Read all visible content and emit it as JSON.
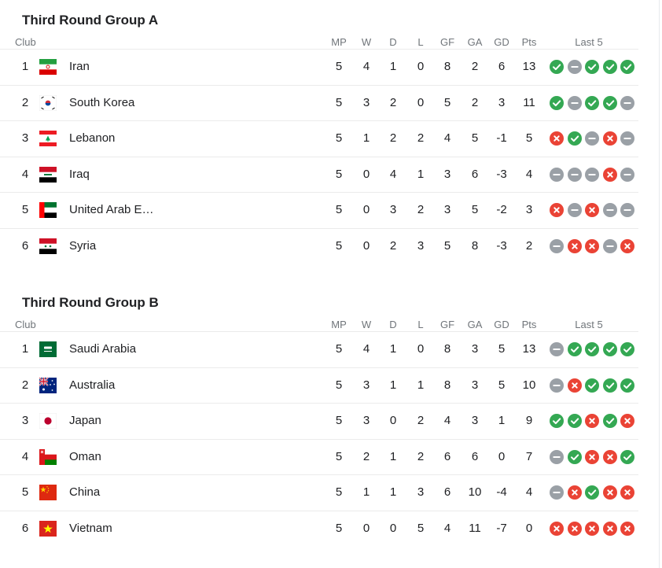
{
  "columns": {
    "club": "Club",
    "mp": "MP",
    "w": "W",
    "d": "D",
    "l": "L",
    "gf": "GF",
    "ga": "GA",
    "gd": "GD",
    "pts": "Pts",
    "last5": "Last 5"
  },
  "result_icons": {
    "W": "check-icon",
    "D": "minus-icon",
    "L": "cross-icon"
  },
  "result_colors": {
    "W": "#34a853",
    "D": "#9aa0a6",
    "L": "#ea4335"
  },
  "groups": [
    {
      "title": "Third Round Group A",
      "rows": [
        {
          "pos": "1",
          "flag": "iran-flag-icon",
          "club": "Iran",
          "mp": "5",
          "w": "4",
          "d": "1",
          "l": "0",
          "gf": "8",
          "ga": "2",
          "gd": "6",
          "pts": "13",
          "last5": [
            "W",
            "D",
            "W",
            "W",
            "W"
          ]
        },
        {
          "pos": "2",
          "flag": "south-korea-flag-icon",
          "club": "South Korea",
          "mp": "5",
          "w": "3",
          "d": "2",
          "l": "0",
          "gf": "5",
          "ga": "2",
          "gd": "3",
          "pts": "11",
          "last5": [
            "W",
            "D",
            "W",
            "W",
            "D"
          ]
        },
        {
          "pos": "3",
          "flag": "lebanon-flag-icon",
          "club": "Lebanon",
          "mp": "5",
          "w": "1",
          "d": "2",
          "l": "2",
          "gf": "4",
          "ga": "5",
          "gd": "-1",
          "pts": "5",
          "last5": [
            "L",
            "W",
            "D",
            "L",
            "D"
          ]
        },
        {
          "pos": "4",
          "flag": "iraq-flag-icon",
          "club": "Iraq",
          "mp": "5",
          "w": "0",
          "d": "4",
          "l": "1",
          "gf": "3",
          "ga": "6",
          "gd": "-3",
          "pts": "4",
          "last5": [
            "D",
            "D",
            "D",
            "L",
            "D"
          ]
        },
        {
          "pos": "5",
          "flag": "uae-flag-icon",
          "club": "United Arab E…",
          "mp": "5",
          "w": "0",
          "d": "3",
          "l": "2",
          "gf": "3",
          "ga": "5",
          "gd": "-2",
          "pts": "3",
          "last5": [
            "L",
            "D",
            "L",
            "D",
            "D"
          ]
        },
        {
          "pos": "6",
          "flag": "syria-flag-icon",
          "club": "Syria",
          "mp": "5",
          "w": "0",
          "d": "2",
          "l": "3",
          "gf": "5",
          "ga": "8",
          "gd": "-3",
          "pts": "2",
          "last5": [
            "D",
            "L",
            "L",
            "D",
            "L"
          ]
        }
      ]
    },
    {
      "title": "Third Round Group B",
      "rows": [
        {
          "pos": "1",
          "flag": "saudi-arabia-flag-icon",
          "club": "Saudi Arabia",
          "mp": "5",
          "w": "4",
          "d": "1",
          "l": "0",
          "gf": "8",
          "ga": "3",
          "gd": "5",
          "pts": "13",
          "last5": [
            "D",
            "W",
            "W",
            "W",
            "W"
          ]
        },
        {
          "pos": "2",
          "flag": "australia-flag-icon",
          "club": "Australia",
          "mp": "5",
          "w": "3",
          "d": "1",
          "l": "1",
          "gf": "8",
          "ga": "3",
          "gd": "5",
          "pts": "10",
          "last5": [
            "D",
            "L",
            "W",
            "W",
            "W"
          ]
        },
        {
          "pos": "3",
          "flag": "japan-flag-icon",
          "club": "Japan",
          "mp": "5",
          "w": "3",
          "d": "0",
          "l": "2",
          "gf": "4",
          "ga": "3",
          "gd": "1",
          "pts": "9",
          "last5": [
            "W",
            "W",
            "L",
            "W",
            "L"
          ]
        },
        {
          "pos": "4",
          "flag": "oman-flag-icon",
          "club": "Oman",
          "mp": "5",
          "w": "2",
          "d": "1",
          "l": "2",
          "gf": "6",
          "ga": "6",
          "gd": "0",
          "pts": "7",
          "last5": [
            "D",
            "W",
            "L",
            "L",
            "W"
          ]
        },
        {
          "pos": "5",
          "flag": "china-flag-icon",
          "club": "China",
          "mp": "5",
          "w": "1",
          "d": "1",
          "l": "3",
          "gf": "6",
          "ga": "10",
          "gd": "-4",
          "pts": "4",
          "last5": [
            "D",
            "L",
            "W",
            "L",
            "L"
          ]
        },
        {
          "pos": "6",
          "flag": "vietnam-flag-icon",
          "club": "Vietnam",
          "mp": "5",
          "w": "0",
          "d": "0",
          "l": "5",
          "gf": "4",
          "ga": "11",
          "gd": "-7",
          "pts": "0",
          "last5": [
            "L",
            "L",
            "L",
            "L",
            "L"
          ]
        }
      ]
    }
  ]
}
